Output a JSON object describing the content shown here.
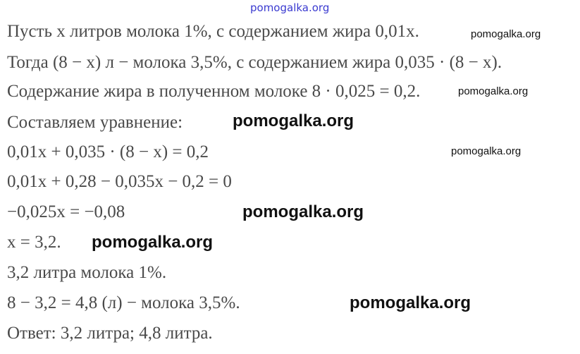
{
  "lines": [
    "Пусть x литров молока 1%, с содержанием жира 0,01x.",
    "Тогда (8 − x) л − молока 3,5%, с содержанием жира 0,035 · (8 − x).",
    "Содержание жира в полученном молоке 8 · 0,025 = 0,2.",
    "Составляем уравнение:",
    "0,01x + 0,035 · (8 − x) = 0,2",
    "0,01x + 0,28 − 0,035x − 0,2 = 0",
    "−0,025x = −0,08",
    "x = 3,2.",
    "3,2 литра молока 1%.",
    "8 − 3,2 = 4,8 (л) − молока 3,5%.",
    "Ответ: 3,2 литра;   4,8 литра."
  ],
  "watermark": "pomogalka.org"
}
